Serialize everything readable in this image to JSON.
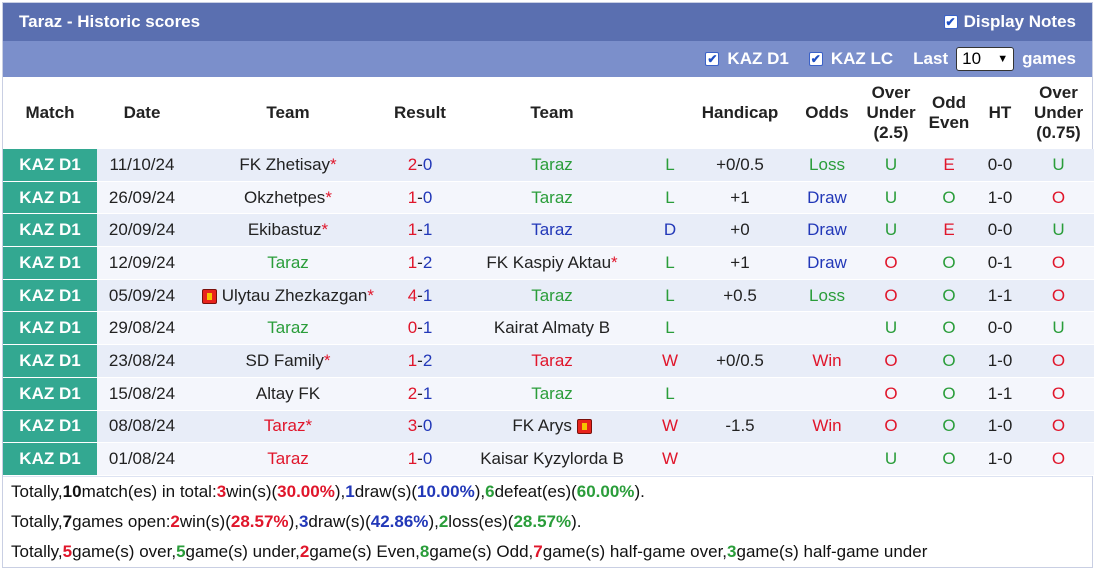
{
  "title": "Taraz - Historic scores",
  "display_notes": {
    "label": "Display Notes",
    "checked": true
  },
  "filters": {
    "kaz_d1": {
      "label": "KAZ D1",
      "checked": true
    },
    "kaz_lc": {
      "label": "KAZ LC",
      "checked": true
    },
    "last_label": "Last",
    "games_count": "10",
    "games_label": "games"
  },
  "headers": {
    "match": "Match",
    "date": "Date",
    "team1": "Team",
    "result": "Result",
    "team2": "Team",
    "handicap": "Handicap",
    "odds": "Odds",
    "over_under_25": [
      "Over",
      "Under",
      "(2.5)"
    ],
    "odd_even": [
      "Odd",
      "Even"
    ],
    "ht": "HT",
    "over_under_075": [
      "Over",
      "Under",
      "(0.75)"
    ]
  },
  "colors": {
    "league_bg": "#33a891",
    "red": "#e0162b",
    "green": "#2a9d3a",
    "blue": "#2238b8",
    "title_bg": "#5a6fb0",
    "filter_bg": "#7b8fcb"
  },
  "rows": [
    {
      "league": "KAZ D1",
      "date": "11/10/24",
      "home": "FK Zhetisay",
      "home_star": "*",
      "home_flag": false,
      "home_color": "dark",
      "score_h": "2",
      "score_a": "0",
      "away": "Taraz",
      "away_star": "",
      "away_flag": false,
      "away_color": "green",
      "wdl": "L",
      "wdl_color": "green",
      "handicap": "+0/0.5",
      "odds": "Loss",
      "odds_color": "green",
      "ou": "U",
      "ou_color": "green",
      "oe": "E",
      "oe_color": "red",
      "ht": "0-0",
      "ou2": "U",
      "ou2_color": "green"
    },
    {
      "league": "KAZ D1",
      "date": "26/09/24",
      "home": "Okzhetpes",
      "home_star": "*",
      "home_flag": false,
      "home_color": "dark",
      "score_h": "1",
      "score_a": "0",
      "away": "Taraz",
      "away_star": "",
      "away_flag": false,
      "away_color": "green",
      "wdl": "L",
      "wdl_color": "green",
      "handicap": "+1",
      "odds": "Draw",
      "odds_color": "blue",
      "ou": "U",
      "ou_color": "green",
      "oe": "O",
      "oe_color": "green",
      "ht": "1-0",
      "ou2": "O",
      "ou2_color": "red"
    },
    {
      "league": "KAZ D1",
      "date": "20/09/24",
      "home": "Ekibastuz",
      "home_star": "*",
      "home_flag": false,
      "home_color": "dark",
      "score_h": "1",
      "score_a": "1",
      "away": "Taraz",
      "away_star": "",
      "away_flag": false,
      "away_color": "blue",
      "wdl": "D",
      "wdl_color": "blue",
      "handicap": "+0",
      "odds": "Draw",
      "odds_color": "blue",
      "ou": "U",
      "ou_color": "green",
      "oe": "E",
      "oe_color": "red",
      "ht": "0-0",
      "ou2": "U",
      "ou2_color": "green"
    },
    {
      "league": "KAZ D1",
      "date": "12/09/24",
      "home": "Taraz",
      "home_star": "",
      "home_flag": false,
      "home_color": "green",
      "score_h": "1",
      "score_a": "2",
      "away": "FK Kaspiy Aktau",
      "away_star": "*",
      "away_flag": false,
      "away_color": "dark",
      "wdl": "L",
      "wdl_color": "green",
      "handicap": "+1",
      "odds": "Draw",
      "odds_color": "blue",
      "ou": "O",
      "ou_color": "red",
      "oe": "O",
      "oe_color": "green",
      "ht": "0-1",
      "ou2": "O",
      "ou2_color": "red"
    },
    {
      "league": "KAZ D1",
      "date": "05/09/24",
      "home": "Ulytau Zhezkazgan",
      "home_star": "*",
      "home_flag": true,
      "home_color": "dark",
      "score_h": "4",
      "score_a": "1",
      "away": "Taraz",
      "away_star": "",
      "away_flag": false,
      "away_color": "green",
      "wdl": "L",
      "wdl_color": "green",
      "handicap": "+0.5",
      "odds": "Loss",
      "odds_color": "green",
      "ou": "O",
      "ou_color": "red",
      "oe": "O",
      "oe_color": "green",
      "ht": "1-1",
      "ou2": "O",
      "ou2_color": "red"
    },
    {
      "league": "KAZ D1",
      "date": "29/08/24",
      "home": "Taraz",
      "home_star": "",
      "home_flag": false,
      "home_color": "green",
      "score_h": "0",
      "score_a": "1",
      "away": "Kairat Almaty B",
      "away_star": "",
      "away_flag": false,
      "away_color": "dark",
      "wdl": "L",
      "wdl_color": "green",
      "handicap": "",
      "odds": "",
      "odds_color": "dark",
      "ou": "U",
      "ou_color": "green",
      "oe": "O",
      "oe_color": "green",
      "ht": "0-0",
      "ou2": "U",
      "ou2_color": "green"
    },
    {
      "league": "KAZ D1",
      "date": "23/08/24",
      "home": "SD Family",
      "home_star": "*",
      "home_flag": false,
      "home_color": "dark",
      "score_h": "1",
      "score_a": "2",
      "away": "Taraz",
      "away_star": "",
      "away_flag": false,
      "away_color": "red",
      "wdl": "W",
      "wdl_color": "red",
      "handicap": "+0/0.5",
      "odds": "Win",
      "odds_color": "red",
      "ou": "O",
      "ou_color": "red",
      "oe": "O",
      "oe_color": "green",
      "ht": "1-0",
      "ou2": "O",
      "ou2_color": "red"
    },
    {
      "league": "KAZ D1",
      "date": "15/08/24",
      "home": "Altay FK",
      "home_star": "",
      "home_flag": false,
      "home_color": "dark",
      "score_h": "2",
      "score_a": "1",
      "away": "Taraz",
      "away_star": "",
      "away_flag": false,
      "away_color": "green",
      "wdl": "L",
      "wdl_color": "green",
      "handicap": "",
      "odds": "",
      "odds_color": "dark",
      "ou": "O",
      "ou_color": "red",
      "oe": "O",
      "oe_color": "green",
      "ht": "1-1",
      "ou2": "O",
      "ou2_color": "red"
    },
    {
      "league": "KAZ D1",
      "date": "08/08/24",
      "home": "Taraz",
      "home_star": "*",
      "home_flag": false,
      "home_color": "red",
      "score_h": "3",
      "score_a": "0",
      "away": "FK Arys",
      "away_star": "",
      "away_flag": true,
      "away_color": "dark",
      "wdl": "W",
      "wdl_color": "red",
      "handicap": "-1.5",
      "odds": "Win",
      "odds_color": "red",
      "ou": "O",
      "ou_color": "red",
      "oe": "O",
      "oe_color": "green",
      "ht": "1-0",
      "ou2": "O",
      "ou2_color": "red"
    },
    {
      "league": "KAZ D1",
      "date": "01/08/24",
      "home": "Taraz",
      "home_star": "",
      "home_flag": false,
      "home_color": "red",
      "score_h": "1",
      "score_a": "0",
      "away": "Kaisar Kyzylorda B",
      "away_star": "",
      "away_flag": false,
      "away_color": "dark",
      "wdl": "W",
      "wdl_color": "red",
      "handicap": "",
      "odds": "",
      "odds_color": "dark",
      "ou": "U",
      "ou_color": "green",
      "oe": "O",
      "oe_color": "green",
      "ht": "1-0",
      "ou2": "O",
      "ou2_color": "red"
    }
  ],
  "summary": {
    "line1": [
      {
        "t": "Totally, ",
        "c": ""
      },
      {
        "t": "10",
        "c": "b"
      },
      {
        "t": " match(es) in total: ",
        "c": ""
      },
      {
        "t": "3",
        "c": "red"
      },
      {
        "t": " win(s)(",
        "c": ""
      },
      {
        "t": "30.00%",
        "c": "red"
      },
      {
        "t": "), ",
        "c": ""
      },
      {
        "t": "1",
        "c": "blue"
      },
      {
        "t": " draw(s)(",
        "c": ""
      },
      {
        "t": "10.00%",
        "c": "blue"
      },
      {
        "t": "), ",
        "c": ""
      },
      {
        "t": "6",
        "c": "green"
      },
      {
        "t": " defeat(es)(",
        "c": ""
      },
      {
        "t": "60.00%",
        "c": "green"
      },
      {
        "t": ").",
        "c": ""
      }
    ],
    "line2": [
      {
        "t": "Totally, ",
        "c": ""
      },
      {
        "t": "7",
        "c": "b"
      },
      {
        "t": " games open: ",
        "c": ""
      },
      {
        "t": "2",
        "c": "red"
      },
      {
        "t": " win(s)(",
        "c": ""
      },
      {
        "t": "28.57%",
        "c": "red"
      },
      {
        "t": "), ",
        "c": ""
      },
      {
        "t": "3",
        "c": "blue"
      },
      {
        "t": " draw(s)(",
        "c": ""
      },
      {
        "t": "42.86%",
        "c": "blue"
      },
      {
        "t": "), ",
        "c": ""
      },
      {
        "t": "2",
        "c": "green"
      },
      {
        "t": " loss(es)(",
        "c": ""
      },
      {
        "t": "28.57%",
        "c": "green"
      },
      {
        "t": ").",
        "c": ""
      }
    ],
    "line3": [
      {
        "t": "Totally, ",
        "c": ""
      },
      {
        "t": "5",
        "c": "red"
      },
      {
        "t": " game(s) over, ",
        "c": ""
      },
      {
        "t": "5",
        "c": "green"
      },
      {
        "t": " game(s) under, ",
        "c": ""
      },
      {
        "t": "2",
        "c": "red"
      },
      {
        "t": " game(s) Even, ",
        "c": ""
      },
      {
        "t": "8",
        "c": "green"
      },
      {
        "t": " game(s) Odd, ",
        "c": ""
      },
      {
        "t": "7",
        "c": "red"
      },
      {
        "t": " game(s) half-game over, ",
        "c": ""
      },
      {
        "t": "3",
        "c": "green"
      },
      {
        "t": " game(s) half-game under",
        "c": ""
      }
    ]
  }
}
